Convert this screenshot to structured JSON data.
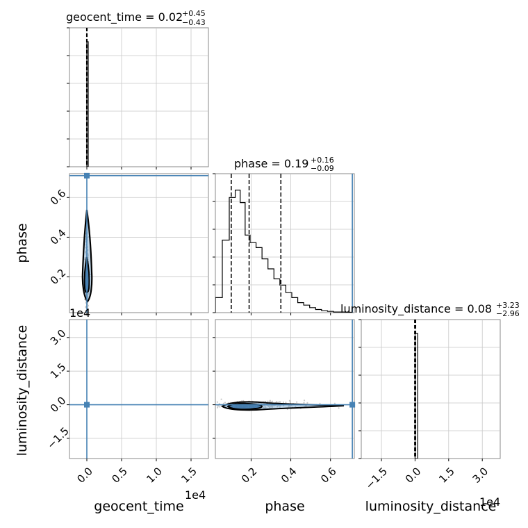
{
  "chart_data": {
    "type": "corner",
    "parameters": [
      "geocent_time",
      "phase",
      "luminosity_distance"
    ],
    "truth": {
      "geocent_time": 0.0,
      "phase": 0.71,
      "luminosity_distance": 0.0
    },
    "diag_titles": [
      {
        "name": "geocent_time",
        "median": "0.02",
        "plus": "+0.45",
        "minus": "−0.43"
      },
      {
        "name": "phase",
        "median": "0.19",
        "plus": "+0.16",
        "minus": "−0.09"
      },
      {
        "name": "luminosity_distance",
        "median": "0.08",
        "plus": "+3.23",
        "minus": "−2.96"
      }
    ],
    "axis_labels": {
      "x": [
        "geocent_time",
        "phase",
        "luminosity_distance"
      ],
      "y": [
        "phase",
        "luminosity_distance"
      ]
    },
    "offset_text": "1e4",
    "ranges": {
      "geocent_time": [
        -0.25,
        1.75
      ],
      "phase": [
        0.02,
        0.72
      ],
      "luminosity_distance": [
        -2.4,
        3.8
      ]
    },
    "ticks": {
      "geocent_time": {
        "values": [
          0.0,
          0.5,
          1.0,
          1.5
        ],
        "labels": [
          "0.0",
          "0.5",
          "1.0",
          "1.5"
        ]
      },
      "phase": {
        "values": [
          0.2,
          0.4,
          0.6
        ],
        "labels": [
          "0.2",
          "0.4",
          "0.6"
        ]
      },
      "luminosity_distance": {
        "values": [
          -1.5,
          0.0,
          1.5,
          3.0
        ],
        "labels": [
          "−1.5",
          "0.0",
          "1.5",
          "3.0"
        ]
      }
    },
    "phase_histogram": {
      "edges": [
        0.02,
        0.055,
        0.09,
        0.12,
        0.145,
        0.17,
        0.195,
        0.225,
        0.255,
        0.285,
        0.315,
        0.345,
        0.375,
        0.405,
        0.435,
        0.465,
        0.495,
        0.525,
        0.555,
        0.585,
        0.615,
        0.645,
        0.675,
        0.71
      ],
      "heights": [
        0.12,
        0.58,
        0.92,
        0.98,
        0.88,
        0.62,
        0.56,
        0.52,
        0.43,
        0.35,
        0.27,
        0.22,
        0.16,
        0.12,
        0.08,
        0.06,
        0.04,
        0.025,
        0.015,
        0.01,
        0.005,
        0.005,
        0.003
      ],
      "quantiles": [
        0.1,
        0.19,
        0.35
      ]
    },
    "geocent_time_histogram": {
      "bins": [
        [
          -0.02,
          0.0,
          0.0
        ],
        [
          0.0,
          0.02,
          1.0
        ],
        [
          0.02,
          0.04,
          0.0
        ]
      ],
      "quantiles": [
        -0.004,
        0.0,
        0.004
      ]
    },
    "luminosity_distance_histogram": {
      "bins": [
        [
          -0.12,
          0.0,
          0.0
        ],
        [
          0.0,
          0.12,
          1.0
        ],
        [
          0.12,
          0.24,
          0.0
        ]
      ],
      "quantiles": [
        -0.02,
        0.01,
        0.03
      ]
    },
    "grid": true
  }
}
